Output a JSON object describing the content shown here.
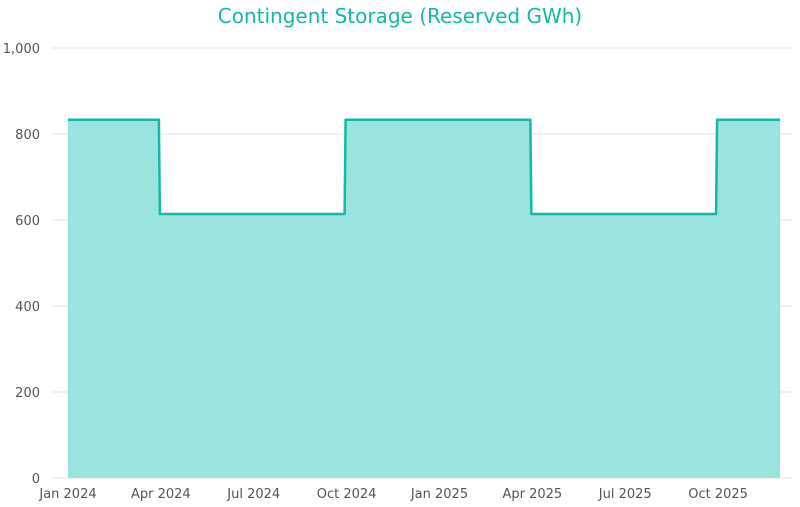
{
  "chart_data": {
    "type": "area",
    "step": true,
    "title": "Contingent Storage (Reserved GWh)",
    "xlabel": "",
    "ylabel": "",
    "ylim": [
      0,
      1000
    ],
    "yticks": [
      0,
      200,
      400,
      600,
      800,
      1000
    ],
    "ytick_labels": [
      "0",
      "200",
      "400",
      "600",
      "800",
      "1,000"
    ],
    "xlim": [
      "2024-01",
      "2025-12"
    ],
    "xtick_labels": [
      "Jan 2024",
      "Apr 2024",
      "Jul 2024",
      "Oct 2024",
      "Jan 2025",
      "Apr 2025",
      "Jul 2025",
      "Oct 2025"
    ],
    "grid": true,
    "legend": "none",
    "colors": {
      "line": "#14b8a6",
      "fill": "#9be3df",
      "title": "#14b8a6"
    },
    "series": [
      {
        "x": [
          "2024-01",
          "2024-02",
          "2024-03",
          "2024-04",
          "2024-05",
          "2024-06",
          "2024-07",
          "2024-08",
          "2024-09",
          "2024-10",
          "2024-11",
          "2024-12",
          "2025-01",
          "2025-02",
          "2025-03",
          "2025-04",
          "2025-05",
          "2025-06",
          "2025-07",
          "2025-08",
          "2025-09",
          "2025-10",
          "2025-11",
          "2025-12"
        ],
        "values": [
          833,
          833,
          833,
          614,
          614,
          614,
          614,
          614,
          614,
          833,
          833,
          833,
          833,
          833,
          833,
          614,
          614,
          614,
          614,
          614,
          614,
          833,
          833,
          833
        ]
      }
    ]
  }
}
